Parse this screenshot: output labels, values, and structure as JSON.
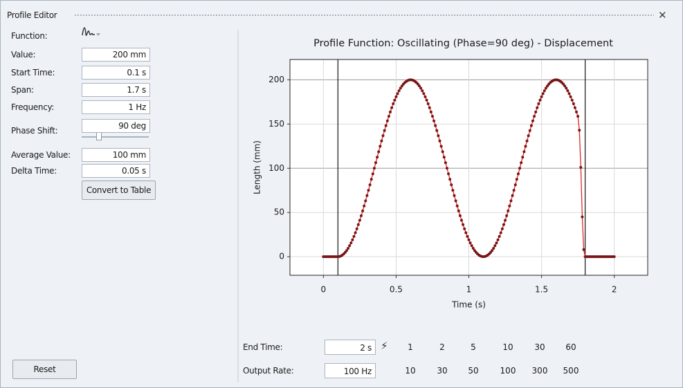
{
  "window": {
    "title": "Profile Editor"
  },
  "fields": [
    {
      "label": "Function:"
    },
    {
      "label": "Value:",
      "value": "200 mm"
    },
    {
      "label": "Start Time:",
      "value": "0.1 s"
    },
    {
      "label": "Span:",
      "value": "1.7 s"
    },
    {
      "label": "Frequency:",
      "value": "1 Hz"
    },
    {
      "label": "Phase Shift:",
      "value": "90 deg"
    },
    {
      "label": "Average Value:",
      "value": "100 mm"
    },
    {
      "label": "Delta Time:",
      "value": "0.05 s"
    }
  ],
  "buttons": {
    "convert": "Convert to Table",
    "reset": "Reset"
  },
  "bottom": {
    "end_time": {
      "label": "End Time:",
      "value": "2 s",
      "options": [
        "1",
        "2",
        "5",
        "10",
        "30",
        "60"
      ]
    },
    "output_rate": {
      "label": "Output Rate:",
      "value": "100 Hz",
      "options": [
        "10",
        "30",
        "50",
        "100",
        "300",
        "500"
      ]
    }
  },
  "chart_data": {
    "type": "line",
    "title": "Profile Function: Oscillating (Phase=90 deg) - Displacement",
    "x_label": "Time (s)",
    "y_label": "Length (mm)",
    "color": "#e02424",
    "marker_color": "#7a1414",
    "grid": true,
    "xlim": [
      -0.23,
      2.23
    ],
    "ylim": [
      -21,
      223
    ],
    "xticks": [
      0,
      0.5,
      1,
      1.5,
      2
    ],
    "yticks": [
      0,
      50,
      100,
      150,
      200
    ],
    "vlines": [
      0.1,
      1.8
    ],
    "x": [
      0,
      0.01,
      0.02,
      0.03,
      0.04,
      0.05,
      0.06,
      0.07,
      0.08,
      0.09,
      0.1,
      0.11,
      0.12,
      0.13,
      0.14,
      0.15,
      0.16,
      0.17,
      0.18,
      0.19,
      0.2,
      0.21,
      0.22,
      0.23,
      0.24,
      0.25,
      0.26,
      0.27,
      0.28,
      0.29,
      0.3,
      0.31,
      0.32,
      0.33,
      0.34,
      0.35,
      0.36,
      0.37,
      0.38,
      0.39,
      0.4,
      0.41,
      0.42,
      0.43,
      0.44,
      0.45,
      0.46,
      0.47,
      0.48,
      0.49,
      0.5,
      0.51,
      0.52,
      0.53,
      0.54,
      0.55,
      0.56,
      0.57,
      0.58,
      0.59,
      0.6,
      0.61,
      0.62,
      0.63,
      0.64,
      0.65,
      0.66,
      0.67,
      0.68,
      0.69,
      0.7,
      0.71,
      0.72,
      0.73,
      0.74,
      0.75,
      0.76,
      0.77,
      0.78,
      0.79,
      0.8,
      0.81,
      0.82,
      0.83,
      0.84,
      0.85,
      0.86,
      0.87,
      0.88,
      0.89,
      0.9,
      0.91,
      0.92,
      0.93,
      0.94,
      0.95,
      0.96,
      0.97,
      0.98,
      0.99,
      1,
      1.01,
      1.02,
      1.03,
      1.04,
      1.05,
      1.06,
      1.07,
      1.08,
      1.09,
      1.1,
      1.11,
      1.12,
      1.13,
      1.14,
      1.15,
      1.16,
      1.17,
      1.18,
      1.19,
      1.2,
      1.21,
      1.22,
      1.23,
      1.24,
      1.25,
      1.26,
      1.27,
      1.28,
      1.29,
      1.3,
      1.31,
      1.32,
      1.33,
      1.34,
      1.35,
      1.36,
      1.37,
      1.38,
      1.39,
      1.4,
      1.41,
      1.42,
      1.43,
      1.44,
      1.45,
      1.46,
      1.47,
      1.48,
      1.49,
      1.5,
      1.51,
      1.52,
      1.53,
      1.54,
      1.55,
      1.56,
      1.57,
      1.58,
      1.59,
      1.6,
      1.61,
      1.62,
      1.63,
      1.64,
      1.65,
      1.66,
      1.67,
      1.68,
      1.69,
      1.7,
      1.71,
      1.72,
      1.73,
      1.74,
      1.75,
      1.76,
      1.77,
      1.78,
      1.79,
      1.8,
      1.81,
      1.82,
      1.83,
      1.84,
      1.85,
      1.86,
      1.87,
      1.88,
      1.89,
      1.9,
      1.91,
      1.92,
      1.93,
      1.94,
      1.95,
      1.96,
      1.97,
      1.98,
      1.99,
      2
    ],
    "values": [
      0,
      0,
      0,
      0,
      0,
      0,
      0,
      0,
      0,
      0,
      0,
      0.2,
      0.8,
      1.8,
      3.1,
      4.9,
      7.0,
      9.5,
      12.4,
      15.6,
      19.1,
      22.9,
      27.1,
      31.5,
      36.3,
      41.2,
      46.4,
      51.8,
      57.4,
      63.2,
      69.1,
      75.1,
      81.3,
      87.5,
      93.7,
      100,
      106.3,
      112.5,
      118.7,
      124.9,
      130.9,
      136.8,
      142.6,
      148.2,
      153.6,
      158.8,
      163.7,
      168.5,
      172.9,
      177.1,
      180.9,
      184.4,
      187.6,
      190.5,
      193.0,
      195.1,
      196.9,
      198.2,
      199.2,
      199.8,
      200,
      199.8,
      199.2,
      198.2,
      196.9,
      195.1,
      193.0,
      190.5,
      187.6,
      184.4,
      180.9,
      177.1,
      172.9,
      168.5,
      163.7,
      158.8,
      153.6,
      148.2,
      142.6,
      136.8,
      130.9,
      124.9,
      118.7,
      112.5,
      106.3,
      100,
      93.7,
      87.5,
      81.3,
      75.1,
      69.1,
      63.2,
      57.4,
      51.8,
      46.4,
      41.2,
      36.3,
      31.5,
      27.1,
      22.9,
      19.1,
      15.6,
      12.4,
      9.5,
      7.0,
      4.9,
      3.1,
      1.8,
      0.8,
      0.2,
      0,
      0.2,
      0.8,
      1.8,
      3.1,
      4.9,
      7.0,
      9.5,
      12.4,
      15.6,
      19.1,
      22.9,
      27.1,
      31.5,
      36.3,
      41.2,
      46.4,
      51.8,
      57.4,
      63.2,
      69.1,
      75.1,
      81.3,
      87.5,
      93.7,
      100,
      106.3,
      112.5,
      118.7,
      124.9,
      130.9,
      136.8,
      142.6,
      148.2,
      153.6,
      158.8,
      163.7,
      168.5,
      172.9,
      177.1,
      180.9,
      184.4,
      187.6,
      190.5,
      193.0,
      195.1,
      196.9,
      198.2,
      199.2,
      199.8,
      200,
      199.8,
      199.2,
      198.2,
      196.9,
      195.1,
      193.0,
      190.5,
      187.6,
      184.4,
      180.9,
      177.1,
      172.9,
      168.5,
      163.7,
      158.8,
      143,
      101,
      45,
      8,
      0,
      0,
      0,
      0,
      0,
      0,
      0,
      0,
      0,
      0,
      0,
      0,
      0,
      0,
      0,
      0,
      0,
      0,
      0,
      0,
      0
    ]
  }
}
